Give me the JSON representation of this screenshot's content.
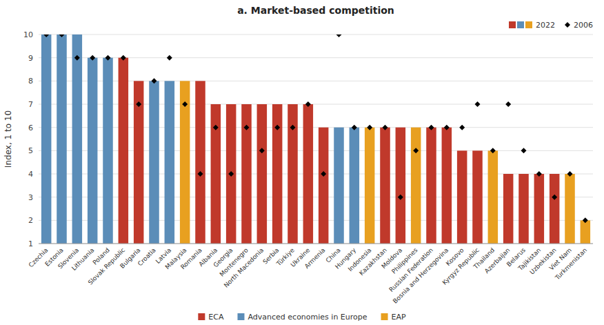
{
  "chart_data": {
    "type": "bar",
    "title": "a. Market-based competition",
    "y_label": "Index, 1 to 10",
    "categories": [
      "Czechia",
      "Estonia",
      "Slovenia",
      "Lithuania",
      "Poland",
      "Slovak Republic",
      "Bulgaria",
      "Croatia",
      "Latvia",
      "Malaysia",
      "Romania",
      "Albania",
      "Georgia",
      "Montenegro",
      "North Macedonia",
      "Serbia",
      "Türkiye",
      "Ukraine",
      "Armenia",
      "China",
      "Hungary",
      "Indonesia",
      "Kazakhstan",
      "Moldova",
      "Philippines",
      "Russian Federation",
      "Bosnia and Herzegovina",
      "Kosovo",
      "Kyrgyz Republic",
      "Thailand",
      "Azerbaijan",
      "Belarus",
      "Tajikistan",
      "Uzbekistan",
      "Viet Nam",
      "Turkmenistan"
    ],
    "series": [
      {
        "name": "2022",
        "type": "bar",
        "values": [
          10,
          10,
          10,
          9,
          9,
          9,
          8,
          8,
          8,
          8,
          8,
          7,
          7,
          7,
          7,
          7,
          7,
          7,
          6,
          6,
          6,
          6,
          6,
          6,
          6,
          6,
          6,
          5,
          5,
          5,
          4,
          4,
          4,
          4,
          4,
          2
        ],
        "colors": [
          "#5b8db8",
          "#5b8db8",
          "#5b8db8",
          "#5b8db8",
          "#5b8db8",
          "#c0392b",
          "#c0392b",
          "#5b8db8",
          "#5b8db8",
          "#e8a020",
          "#c0392b",
          "#c0392b",
          "#c0392b",
          "#c0392b",
          "#c0392b",
          "#c0392b",
          "#c0392b",
          "#c0392b",
          "#c0392b",
          "#5b8db8",
          "#5b8db8",
          "#e8a020",
          "#c0392b",
          "#c0392b",
          "#e8a020",
          "#c0392b",
          "#c0392b",
          "#c0392b",
          "#c0392b",
          "#e8a020",
          "#c0392b",
          "#c0392b",
          "#c0392b",
          "#c0392b",
          "#e8a020",
          "#e8a020"
        ]
      },
      {
        "name": "2006",
        "type": "scatter",
        "marker": "diamond",
        "color": "#000000",
        "values": [
          10,
          10,
          9,
          9,
          9,
          9,
          7,
          8,
          9,
          7,
          4,
          6,
          4,
          6,
          5,
          6,
          6,
          7,
          4,
          10,
          6,
          6,
          6,
          3,
          5,
          6,
          6,
          6,
          7,
          5,
          7,
          5,
          4,
          3,
          4,
          2
        ]
      }
    ],
    "groups": [
      {
        "name": "ECA",
        "color": "#c0392b"
      },
      {
        "name": "Advanced economies in Europe",
        "color": "#5b8db8"
      },
      {
        "name": "EAP",
        "color": "#e8a020"
      }
    ],
    "ylim": [
      1,
      10
    ],
    "yticks": [
      1,
      2,
      3,
      4,
      5,
      6,
      7,
      8,
      9,
      10
    ],
    "grid": true,
    "legend": "upper right"
  }
}
